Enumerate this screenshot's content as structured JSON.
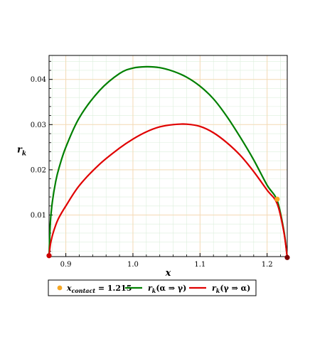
{
  "chart_data": {
    "type": "line",
    "xlabel": "x",
    "ylabel": "r",
    "ylabel_sub": "k",
    "xlim": [
      0.875,
      1.23
    ],
    "ylim": [
      0.0008,
      0.0453
    ],
    "x_ticks": [
      0.9,
      1.0,
      1.1,
      1.2
    ],
    "x_tick_labels": [
      "0.9",
      "1.0",
      "1.1",
      "1.2"
    ],
    "y_ticks": [
      0.01,
      0.02,
      0.03,
      0.04
    ],
    "y_tick_labels": [
      "0.01",
      "0.02",
      "0.03",
      "0.04"
    ],
    "grid": true,
    "legend_position": "bottom",
    "series": [
      {
        "name": "r_k(α ⇒ γ)",
        "color": "#008000",
        "x": [
          0.875,
          0.877,
          0.88,
          0.885,
          0.89,
          0.9,
          0.92,
          0.95,
          0.98,
          1.0,
          1.02,
          1.04,
          1.06,
          1.08,
          1.1,
          1.12,
          1.14,
          1.16,
          1.18,
          1.2,
          1.215,
          1.225,
          1.23
        ],
        "y": [
          0.001,
          0.0085,
          0.013,
          0.0175,
          0.0205,
          0.025,
          0.0315,
          0.0375,
          0.0413,
          0.0425,
          0.0428,
          0.0426,
          0.0418,
          0.0405,
          0.0385,
          0.0357,
          0.0318,
          0.0272,
          0.0222,
          0.0166,
          0.0132,
          0.0065,
          0.0006
        ]
      },
      {
        "name": "r_k(γ ⇒ α)",
        "color": "#e00000",
        "x": [
          0.875,
          0.877,
          0.88,
          0.885,
          0.89,
          0.9,
          0.92,
          0.95,
          0.98,
          1.0,
          1.02,
          1.04,
          1.06,
          1.08,
          1.1,
          1.12,
          1.14,
          1.16,
          1.18,
          1.2,
          1.215,
          1.225,
          1.23
        ],
        "y": [
          0.001,
          0.0035,
          0.0055,
          0.0078,
          0.0095,
          0.012,
          0.0165,
          0.0212,
          0.0248,
          0.0268,
          0.0284,
          0.0295,
          0.03,
          0.0301,
          0.0296,
          0.0282,
          0.026,
          0.0232,
          0.0196,
          0.0155,
          0.0125,
          0.0062,
          0.0006
        ]
      }
    ],
    "markers": [
      {
        "name": "x_contact = 1.215",
        "x": 1.215,
        "y": 0.0135,
        "color": "#f5a623"
      },
      {
        "name": "start",
        "x": 0.875,
        "y": 0.001,
        "color": "#cc0000"
      },
      {
        "name": "end",
        "x": 1.23,
        "y": 0.0006,
        "color": "#7a0000"
      }
    ],
    "legend": [
      {
        "type": "marker",
        "color": "#f5a623",
        "label_main": "x",
        "label_sub": "contact",
        "label_rest": " = 1.215"
      },
      {
        "type": "line",
        "color": "#008000",
        "label_main": "r",
        "label_sub": "k",
        "label_rest": "(α ⇒ γ)"
      },
      {
        "type": "line",
        "color": "#e00000",
        "label_main": "r",
        "label_sub": "k",
        "label_rest": "(γ ⇒ α)"
      }
    ]
  },
  "colors": {
    "grid_major": "#f5d9b5",
    "grid_minor": "#dcefdc",
    "axis": "#000000"
  }
}
